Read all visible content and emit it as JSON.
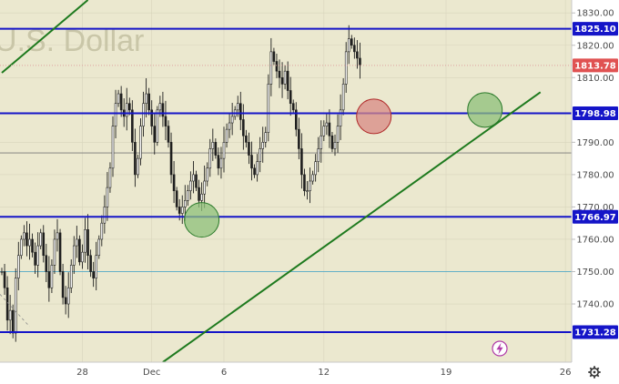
{
  "watermark": "U.S. Dollar",
  "colors": {
    "plot_bg": "#ebe8cf",
    "axis_bg": "#ffffff",
    "candle": "#1f1f1f",
    "support_resistance": "#1515c8",
    "trendline": "#1e7a1e",
    "circle_green": "#8dc07a",
    "circle_red": "#d88a84",
    "price_badge": "#e05252",
    "dotted_price": "#e0a0a0",
    "grid": "#d8d5bc"
  },
  "chart_data": {
    "type": "candlestick",
    "title": "",
    "xlabel": "",
    "ylabel": "",
    "ylim": [
      1722,
      1834
    ],
    "y_ticks": [
      1740,
      1750,
      1760,
      1770,
      1780,
      1790,
      1810,
      1820,
      1830
    ],
    "x_ticks": [
      "28",
      "Dec",
      "6",
      "12",
      "19",
      "26"
    ],
    "current_price": {
      "value": 1813.78,
      "label": "1813.78"
    },
    "horizontal_levels": [
      {
        "value": 1825.1,
        "label": "1825.10"
      },
      {
        "value": 1798.98,
        "label": "1798.98"
      },
      {
        "value": 1766.97,
        "label": "1766.97"
      },
      {
        "value": 1731.28,
        "label": "1731.28"
      }
    ],
    "thin_levels": [
      1786.7,
      1750.0,
      1722.0
    ],
    "trendlines": [
      {
        "from": {
          "bar": 58,
          "value": 1722
        },
        "to": {
          "bar": 194,
          "value": 1805.5
        }
      },
      {
        "from": {
          "bar": 0,
          "value": 1811.5
        },
        "to": {
          "bar": 31,
          "value": 1834
        }
      }
    ],
    "markers": [
      {
        "type": "circle",
        "color": "green",
        "bar": 72,
        "value": 1766
      },
      {
        "type": "circle",
        "color": "red",
        "bar": 134,
        "value": 1798
      },
      {
        "type": "circle",
        "color": "green",
        "bar": 174,
        "value": 1800
      }
    ],
    "ohlc_path": [
      1750,
      1745,
      1735,
      1738,
      1731,
      1748,
      1755,
      1760,
      1762,
      1758,
      1760,
      1756,
      1752,
      1758,
      1762,
      1755,
      1750,
      1745,
      1752,
      1760,
      1762,
      1750,
      1742,
      1740,
      1745,
      1752,
      1758,
      1760,
      1753,
      1756,
      1763,
      1755,
      1750,
      1748,
      1755,
      1760,
      1765,
      1770,
      1776,
      1782,
      1795,
      1802,
      1805,
      1800,
      1798,
      1802,
      1800,
      1790,
      1780,
      1785,
      1795,
      1802,
      1805,
      1800,
      1795,
      1790,
      1800,
      1802,
      1798,
      1795,
      1790,
      1780,
      1775,
      1770,
      1768,
      1770,
      1772,
      1775,
      1778,
      1780,
      1776,
      1772,
      1774,
      1778,
      1782,
      1788,
      1790,
      1786,
      1782,
      1785,
      1790,
      1794,
      1796,
      1798,
      1800,
      1802,
      1797,
      1792,
      1790,
      1786,
      1782,
      1780,
      1784,
      1788,
      1790,
      1793,
      1808,
      1818,
      1815,
      1812,
      1810,
      1808,
      1812,
      1806,
      1802,
      1800,
      1794,
      1788,
      1780,
      1775,
      1775,
      1778,
      1780,
      1784,
      1788,
      1792,
      1795,
      1796,
      1792,
      1788,
      1790,
      1795,
      1800,
      1808,
      1818,
      1822,
      1820,
      1818,
      1816,
      1814
    ]
  },
  "ui": {
    "settings_icon": "gear-icon",
    "flash_icon": "lightning-icon"
  }
}
